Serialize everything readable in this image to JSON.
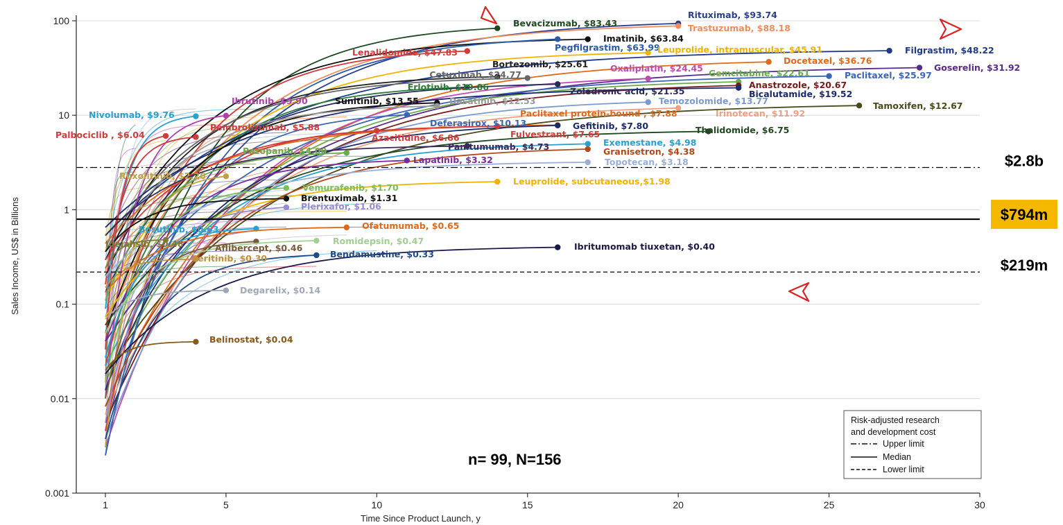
{
  "chart_data": {
    "type": "line",
    "scale": "log",
    "xlabel": "Time Since Product Launch, y",
    "ylabel": "Sales Income, US$ in Billions",
    "xlim": [
      0,
      30
    ],
    "ylim": [
      0.001,
      100
    ],
    "x_ticks": [
      "1",
      "5",
      "10",
      "15",
      "20",
      "25",
      "30"
    ],
    "y_ticks": [
      "0.001",
      "0.01",
      "0.1",
      "1",
      "10",
      "100"
    ],
    "grid": "horizontal",
    "annotation": "n= 99, N=156",
    "thresholds": [
      {
        "label": "$2.8b",
        "value": 2.8,
        "style": "dashdot",
        "legend": "Upper limit"
      },
      {
        "label": "$794m",
        "value": 0.794,
        "style": "solid",
        "legend": "Median",
        "highlight": "#f5b800"
      },
      {
        "label": "$219m",
        "value": 0.219,
        "style": "dashed",
        "legend": "Lower limit"
      }
    ],
    "legend": {
      "title_line1": "Risk-adjusted research",
      "title_line2": "and development cost",
      "items": [
        "Upper limit",
        "Median",
        "Lower limit"
      ],
      "position": "bottom-right"
    },
    "series": [
      {
        "name": "Bevacizumab, $83.43",
        "end_year": 14,
        "end_value": 83.43,
        "color": "#1f4a1f"
      },
      {
        "name": "Rituximab, $93.74",
        "end_year": 20,
        "end_value": 93.74,
        "color": "#2b3f8f"
      },
      {
        "name": "Trastuzumab, $88.18",
        "end_year": 20,
        "end_value": 88.18,
        "color": "#ef8c5a"
      },
      {
        "name": "Imatinib, $63.84",
        "end_year": 17,
        "end_value": 63.84,
        "color": "#111111"
      },
      {
        "name": "Pegfilgrastim, $63.99",
        "end_year": 16,
        "end_value": 63.99,
        "color": "#2b5aa8"
      },
      {
        "name": "Lenalidomide, $47.83",
        "end_year": 13,
        "end_value": 47.83,
        "color": "#d33a3a"
      },
      {
        "name": "Leuprolide, intramuscular, $45.91",
        "end_year": 19,
        "end_value": 45.91,
        "color": "#f0b400"
      },
      {
        "name": "Filgrastim, $48.22",
        "end_year": 27,
        "end_value": 48.22,
        "color": "#1f3a8a"
      },
      {
        "name": "Docetaxel, $36.76",
        "end_year": 23,
        "end_value": 36.76,
        "color": "#e06a1a"
      },
      {
        "name": "Goserelin, $31.92",
        "end_year": 28,
        "end_value": 31.92,
        "color": "#5a2a8a"
      },
      {
        "name": "Bortezomib, $25.61",
        "end_year": 14,
        "end_value": 25.61,
        "color": "#222222"
      },
      {
        "name": "Oxaliplatin, $24.45",
        "end_year": 19,
        "end_value": 24.45,
        "color": "#c04ab0"
      },
      {
        "name": "Gemcitabine, $22.61",
        "end_year": 22,
        "end_value": 22.61,
        "color": "#6aab4a"
      },
      {
        "name": "Paclitaxel, $25.97",
        "end_year": 25,
        "end_value": 25.97,
        "color": "#3a66b5"
      },
      {
        "name": "Cetuximab, $24.77",
        "end_year": 15,
        "end_value": 24.77,
        "color": "#666666"
      },
      {
        "name": "Anastrozole, $20.67",
        "end_year": 22,
        "end_value": 20.67,
        "color": "#7a1a1a"
      },
      {
        "name": "Erlotinib, $19.86",
        "end_year": 13,
        "end_value": 19.86,
        "color": "#2a7a3a"
      },
      {
        "name": "Zoledronic acid, $21.35",
        "end_year": 16,
        "end_value": 21.35,
        "color": "#2a2a5a"
      },
      {
        "name": "Bicalutamide, $19.52",
        "end_year": 22,
        "end_value": 19.52,
        "color": "#1a2a6a"
      },
      {
        "name": "Ibrutinib, $9.90",
        "end_year": 5,
        "end_value": 9.9,
        "color": "#b040b0"
      },
      {
        "name": "Sunitinib, $13.55",
        "end_year": 12,
        "end_value": 13.55,
        "color": "#111111"
      },
      {
        "name": "Dasatinib, $12.53",
        "end_year": 12,
        "end_value": 12.53,
        "color": "#999999"
      },
      {
        "name": "Temozolomide, $13.77",
        "end_year": 19,
        "end_value": 13.77,
        "color": "#7a9ad0"
      },
      {
        "name": "Tamoxifen, $12.67",
        "end_year": 26,
        "end_value": 12.67,
        "color": "#4a4a1a"
      },
      {
        "name": "Nivolumab, $9.76",
        "end_year": 4,
        "end_value": 9.76,
        "color": "#2aa0d0"
      },
      {
        "name": "Paclitaxel protein-bound , $7.88",
        "end_year": 16,
        "end_value": 7.88,
        "color": "#e06a1a"
      },
      {
        "name": "Irinotecan, $11.92",
        "end_year": 20,
        "end_value": 11.92,
        "color": "#f0a080"
      },
      {
        "name": "Palbociclib , $6.04",
        "end_year": 3,
        "end_value": 6.04,
        "color": "#d33a3a"
      },
      {
        "name": "Pembrolizumab, $5.88",
        "end_year": 4,
        "end_value": 5.88,
        "color": "#d33a3a"
      },
      {
        "name": "Deferasirox, $10.13",
        "end_year": 11,
        "end_value": 10.13,
        "color": "#3a66b5"
      },
      {
        "name": "Gefitinib, $7.80",
        "end_year": 16,
        "end_value": 7.8,
        "color": "#1a2a6a"
      },
      {
        "name": "Thalidomide, $6.75",
        "end_year": 21,
        "end_value": 6.75,
        "color": "#1f4a1f"
      },
      {
        "name": "Fulvestrant, $7.65",
        "end_year": 14,
        "end_value": 7.65,
        "color": "#d33a3a"
      },
      {
        "name": "Azacitidine, $6.86",
        "end_year": 10,
        "end_value": 6.86,
        "color": "#d33a3a"
      },
      {
        "name": "Exemestane, $4.98",
        "end_year": 17,
        "end_value": 4.98,
        "color": "#2aa0d0"
      },
      {
        "name": "Pazopanib, $4.00",
        "end_year": 9,
        "end_value": 4.0,
        "color": "#6aab4a"
      },
      {
        "name": "Panitumumab, $4.73",
        "end_year": 13,
        "end_value": 4.73,
        "color": "#3a2a5a"
      },
      {
        "name": "Granisetron, $4.38",
        "end_year": 17,
        "end_value": 4.38,
        "color": "#b04a1a"
      },
      {
        "name": "Lapatinib, $3.32",
        "end_year": 11,
        "end_value": 3.32,
        "color": "#7a2aa0"
      },
      {
        "name": "Topotecan, $3.18",
        "end_year": 17,
        "end_value": 3.18,
        "color": "#9ab0d8"
      },
      {
        "name": "Ruxolitinib, $2.26",
        "end_year": 5,
        "end_value": 2.26,
        "color": "#c0a040"
      },
      {
        "name": "Vemurafenib, $1.70",
        "end_year": 7,
        "end_value": 1.7,
        "color": "#7ac05a"
      },
      {
        "name": "Leuprolide, subcutaneous,$1.98",
        "end_year": 14,
        "end_value": 1.98,
        "color": "#f0b400"
      },
      {
        "name": "Brentuximab, $1.31",
        "end_year": 7,
        "end_value": 1.31,
        "color": "#111111"
      },
      {
        "name": "Plerixafor, $1.06",
        "end_year": 7,
        "end_value": 1.06,
        "color": "#9a8ad0"
      },
      {
        "name": "Bosutinib, $0.63",
        "end_year": 6,
        "end_value": 0.63,
        "color": "#2aa0d0"
      },
      {
        "name": "Ofatumumab, $0.65",
        "end_year": 9,
        "end_value": 0.65,
        "color": "#e06a1a"
      },
      {
        "name": "Idelalisib, $0.48",
        "end_year": 3,
        "end_value": 0.48,
        "color": "#7a7a3a"
      },
      {
        "name": "Aflibercept, $0.46",
        "end_year": 6,
        "end_value": 0.46,
        "color": "#7a5a3a"
      },
      {
        "name": "Romidepsin, $0.47",
        "end_year": 8,
        "end_value": 0.47,
        "color": "#a0d090"
      },
      {
        "name": "Ceritinib, $0.30",
        "end_year": 4,
        "end_value": 0.3,
        "color": "#c09040"
      },
      {
        "name": "Bendamustine, $0.33",
        "end_year": 8,
        "end_value": 0.33,
        "color": "#1f4a8a"
      },
      {
        "name": "Ibritumomab tiuxetan, $0.40",
        "end_year": 16,
        "end_value": 0.4,
        "color": "#1a1a4a"
      },
      {
        "name": "Degarelix, $0.14",
        "end_year": 5,
        "end_value": 0.14,
        "color": "#a0a8b8"
      },
      {
        "name": "Belinostat, $0.04",
        "end_year": 4,
        "end_value": 0.04,
        "color": "#8a5a1a"
      }
    ]
  }
}
